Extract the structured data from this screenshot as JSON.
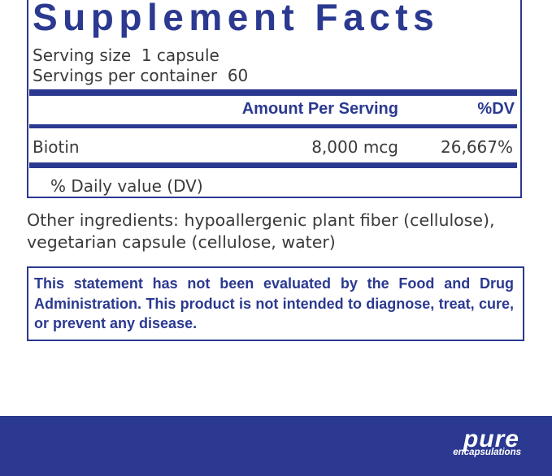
{
  "header": {
    "title": "Supplement Facts"
  },
  "serving": [
    "Serving size  1 capsule",
    "Servings per container  60"
  ],
  "table": {
    "columns": [
      "Amount Per Serving",
      "%DV"
    ],
    "rows": [
      [
        "Biotin",
        "8,000 mcg",
        "26,667%"
      ]
    ]
  },
  "footnote": "% Daily value (DV)",
  "other_ingredients": "Other ingredients: hypoallergenic plant fiber (cellulose), vegetarian capsule (cellulose, water)",
  "statement": "This statement has not been evaluated by the Food and Drug Administration. This product is not intended to diagnose, treat, cure, or prevent any disease.",
  "brand": {
    "name": "pure",
    "tagline": "encapsulations"
  }
}
